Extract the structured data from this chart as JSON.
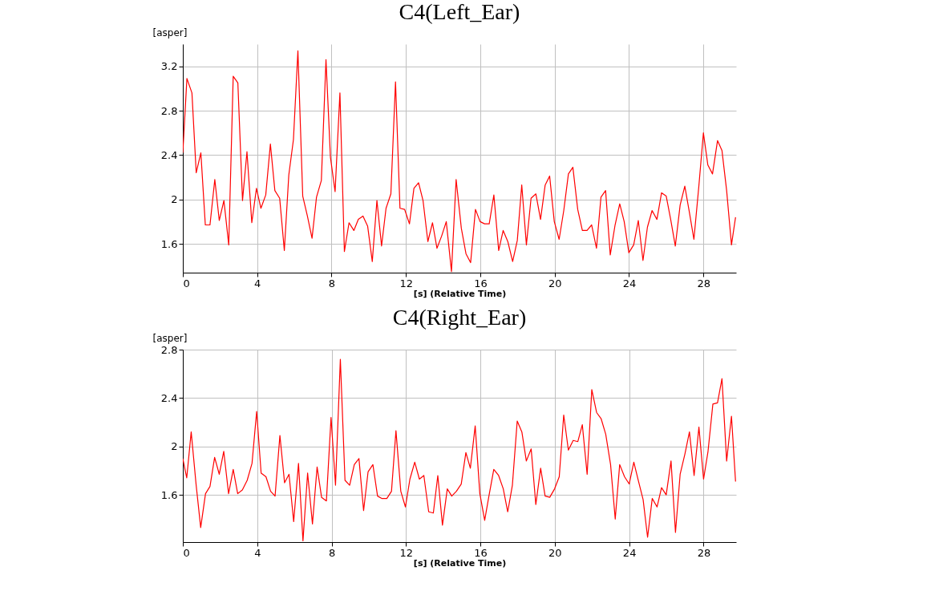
{
  "chart_data": [
    {
      "type": "line",
      "title": "C4(Left_Ear)",
      "xlabel": "[s] (Relative Time)",
      "ylabel": "[asper]",
      "grid": true,
      "xlim": [
        0,
        29.76
      ],
      "ylim": [
        1.34,
        3.4
      ],
      "xticks": [
        0,
        4,
        8,
        12,
        16,
        20,
        24,
        28
      ],
      "yticks": [
        1.6,
        2,
        2.4,
        2.8,
        3.2
      ],
      "x": [
        0,
        0.22,
        0.49,
        0.72,
        0.97,
        1.21,
        1.46,
        1.72,
        1.96,
        2.21,
        2.47,
        2.71,
        2.96,
        3.21,
        3.45,
        3.71,
        3.96,
        4.2,
        4.46,
        4.71,
        4.95,
        5.21,
        5.46,
        5.7,
        5.95,
        6.19,
        6.45,
        6.7,
        6.95,
        7.19,
        7.45,
        7.7,
        7.94,
        8.19,
        8.45,
        8.69,
        8.94,
        9.2,
        9.44,
        9.69,
        9.94,
        10.19,
        10.44,
        10.69,
        10.93,
        11.19,
        11.44,
        11.68,
        11.93,
        12.19,
        12.43,
        12.68,
        12.92,
        13.18,
        13.43,
        13.67,
        13.92,
        14.17,
        14.45,
        14.7,
        14.98,
        15.23,
        15.48,
        15.74,
        15.99,
        16.23,
        16.48,
        16.73,
        16.99,
        17.23,
        17.48,
        17.74,
        17.99,
        18.23,
        18.48,
        18.73,
        18.99,
        19.24,
        19.49,
        19.73,
        19.98,
        20.24,
        20.49,
        20.74,
        20.98,
        21.24,
        21.49,
        21.74,
        21.99,
        22.25,
        22.49,
        22.74,
        22.99,
        23.25,
        23.5,
        23.74,
        23.99,
        24.25,
        24.5,
        24.75,
        24.99,
        25.24,
        25.5,
        25.75,
        26,
        26.24,
        26.49,
        26.75,
        27,
        27.24,
        27.49,
        27.75,
        28,
        28.24,
        28.49,
        28.76,
        29,
        29.25,
        29.51,
        29.73
      ],
      "series": [
        {
          "color": "#ff0000",
          "values": [
            2.42,
            3.09,
            2.96,
            2.24,
            2.42,
            1.77,
            1.77,
            2.18,
            1.81,
            1.99,
            1.59,
            3.11,
            3.05,
            1.99,
            2.43,
            1.79,
            2.1,
            1.92,
            2.04,
            2.5,
            2.08,
            2.01,
            1.54,
            2.22,
            2.54,
            3.34,
            2.03,
            1.85,
            1.65,
            2.02,
            2.17,
            3.26,
            2.38,
            2.07,
            2.96,
            1.53,
            1.79,
            1.72,
            1.82,
            1.85,
            1.76,
            1.44,
            1.99,
            1.58,
            1.92,
            2.05,
            3.06,
            1.92,
            1.91,
            1.78,
            2.1,
            2.15,
            1.99,
            1.62,
            1.79,
            1.56,
            1.67,
            1.8,
            1.35,
            2.18,
            1.74,
            1.51,
            1.43,
            1.91,
            1.8,
            1.78,
            1.78,
            2.04,
            1.54,
            1.72,
            1.62,
            1.44,
            1.63,
            2.13,
            1.59,
            2.01,
            2.05,
            1.82,
            2.13,
            2.21,
            1.8,
            1.64,
            1.9,
            2.23,
            2.29,
            1.91,
            1.72,
            1.72,
            1.77,
            1.56,
            2.02,
            2.08,
            1.5,
            1.77,
            1.96,
            1.8,
            1.52,
            1.59,
            1.81,
            1.45,
            1.75,
            1.9,
            1.82,
            2.06,
            2.03,
            1.82,
            1.58,
            1.95,
            2.12,
            1.89,
            1.64,
            2.11,
            2.6,
            2.31,
            2.23,
            2.53,
            2.44,
            2.08,
            1.59,
            1.84
          ]
        }
      ]
    },
    {
      "type": "line",
      "title": "C4(Right_Ear)",
      "xlabel": "[s] (Relative Time)",
      "ylabel": "[asper]",
      "grid": true,
      "xlim": [
        0,
        29.75
      ],
      "ylim": [
        1.21,
        2.8
      ],
      "xticks": [
        0,
        4,
        8,
        12,
        16,
        20,
        24,
        28
      ],
      "yticks": [
        1.6,
        2,
        2.4,
        2.8
      ],
      "x": [
        0,
        0.21,
        0.45,
        0.71,
        0.96,
        1.22,
        1.46,
        1.71,
        1.96,
        2.2,
        2.46,
        2.71,
        2.95,
        3.2,
        3.46,
        3.72,
        3.97,
        4.21,
        4.47,
        4.72,
        4.96,
        5.22,
        5.47,
        5.71,
        5.96,
        6.22,
        6.46,
        6.71,
        6.97,
        7.22,
        7.46,
        7.72,
        7.97,
        8.21,
        8.47,
        8.72,
        8.97,
        9.22,
        9.47,
        9.72,
        9.96,
        10.22,
        10.47,
        10.71,
        10.97,
        11.22,
        11.46,
        11.72,
        11.97,
        12.21,
        12.47,
        12.72,
        12.96,
        13.22,
        13.47,
        13.71,
        13.96,
        14.22,
        14.46,
        14.71,
        14.97,
        15.22,
        15.46,
        15.72,
        15.97,
        16.23,
        16.47,
        16.72,
        16.98,
        17.23,
        17.47,
        17.72,
        17.98,
        18.23,
        18.47,
        18.73,
        18.98,
        19.24,
        19.48,
        19.73,
        19.99,
        20.24,
        20.48,
        20.73,
        20.99,
        21.24,
        21.48,
        21.74,
        21.99,
        22.25,
        22.49,
        22.74,
        23,
        23.25,
        23.49,
        23.75,
        24,
        24.25,
        24.49,
        24.75,
        24.99,
        25.24,
        25.5,
        25.74,
        25.99,
        26.25,
        26.49,
        26.74,
        27,
        27.24,
        27.49,
        27.75,
        28,
        28.24,
        28.5,
        28.75,
        28.99,
        29.24,
        29.5,
        29.72
      ],
      "series": [
        {
          "color": "#ff0000",
          "values": [
            1.9,
            1.74,
            2.12,
            1.69,
            1.33,
            1.61,
            1.67,
            1.91,
            1.77,
            1.96,
            1.61,
            1.81,
            1.61,
            1.64,
            1.72,
            1.86,
            2.29,
            1.78,
            1.75,
            1.63,
            1.59,
            2.09,
            1.7,
            1.77,
            1.38,
            1.86,
            1.22,
            1.78,
            1.36,
            1.83,
            1.58,
            1.55,
            2.24,
            1.68,
            2.72,
            1.72,
            1.68,
            1.85,
            1.9,
            1.47,
            1.79,
            1.85,
            1.59,
            1.57,
            1.57,
            1.63,
            2.13,
            1.63,
            1.5,
            1.73,
            1.87,
            1.73,
            1.76,
            1.46,
            1.45,
            1.76,
            1.35,
            1.65,
            1.59,
            1.63,
            1.69,
            1.95,
            1.82,
            2.17,
            1.61,
            1.39,
            1.6,
            1.81,
            1.76,
            1.65,
            1.46,
            1.68,
            2.21,
            2.12,
            1.88,
            1.98,
            1.52,
            1.82,
            1.59,
            1.58,
            1.65,
            1.75,
            2.26,
            1.97,
            2.05,
            2.04,
            2.18,
            1.77,
            2.47,
            2.28,
            2.23,
            2.1,
            1.85,
            1.4,
            1.85,
            1.75,
            1.69,
            1.87,
            1.72,
            1.56,
            1.25,
            1.57,
            1.5,
            1.66,
            1.6,
            1.88,
            1.29,
            1.77,
            1.94,
            2.12,
            1.76,
            2.16,
            1.73,
            1.96,
            2.35,
            2.36,
            2.56,
            1.88,
            2.25,
            1.71
          ]
        }
      ]
    }
  ]
}
